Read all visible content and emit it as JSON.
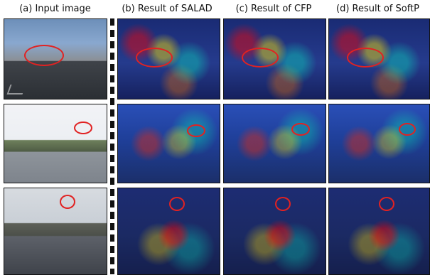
{
  "columns": [
    {
      "title": "(a) Input image"
    },
    {
      "title": "(b) Result of SALAD"
    },
    {
      "title": "(c) Result of CFP"
    },
    {
      "title": "(d) Result of SoftP"
    }
  ],
  "colors": {
    "highlight": "#e12222",
    "separator": "#111111"
  }
}
